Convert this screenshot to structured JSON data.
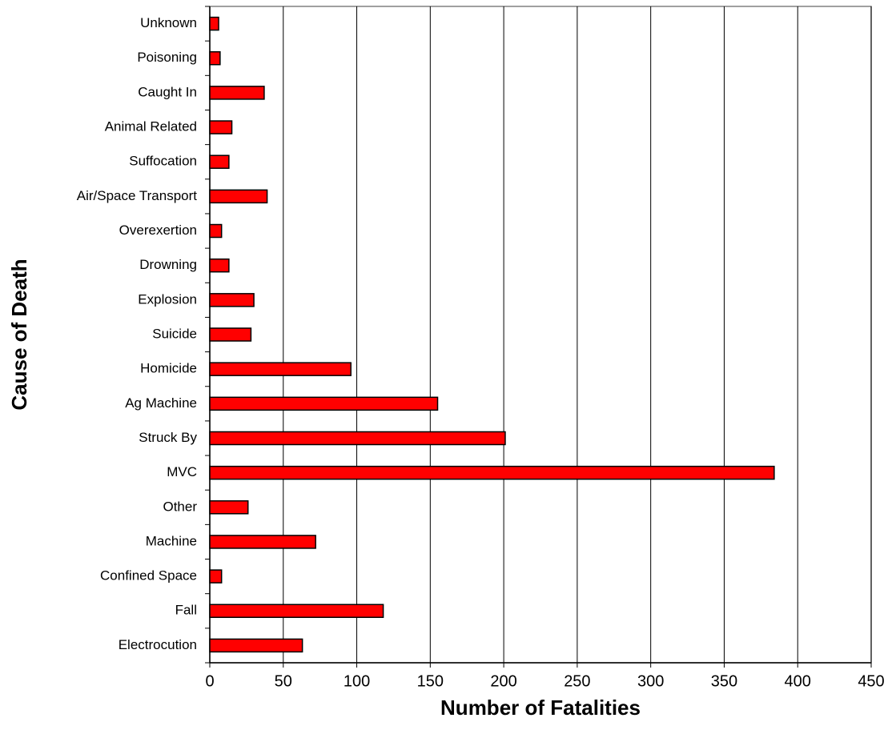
{
  "chart_data": {
    "type": "hbar",
    "x_label": "Number of Fatalities",
    "y_label": "Cause of Death",
    "categories": [
      "Electrocution",
      "Fall",
      "Confined Space",
      "Machine",
      "Other",
      "MVC",
      "Struck By",
      "Ag Machine",
      "Homicide",
      "Suicide",
      "Explosion",
      "Drowning",
      "Overexertion",
      "Air/Space Transport",
      "Suffocation",
      "Animal Related",
      "Caught In",
      "Poisoning",
      "Unknown"
    ],
    "values": [
      63,
      118,
      8,
      72,
      26,
      384,
      201,
      155,
      96,
      28,
      30,
      13,
      8,
      39,
      13,
      15,
      37,
      7,
      6
    ],
    "color": "#ff0000",
    "xlim": [
      0,
      450
    ],
    "xticks": [
      0,
      50,
      100,
      150,
      200,
      250,
      300,
      350,
      400,
      450
    ],
    "grid": true
  }
}
